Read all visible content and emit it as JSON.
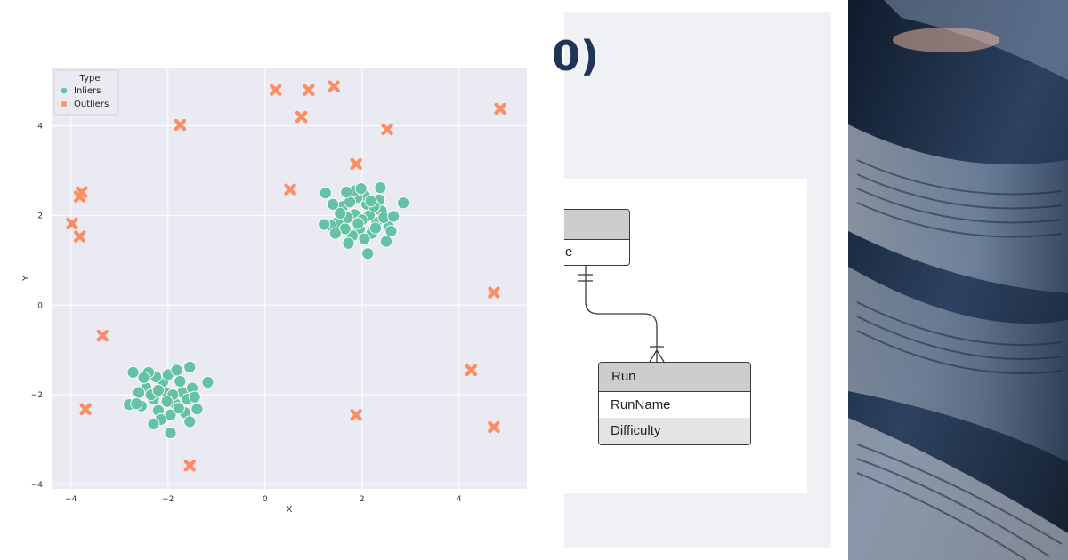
{
  "chart_data": {
    "type": "scatter",
    "title": "",
    "xlabel": "X",
    "ylabel": "Y",
    "xlim": [
      -4.4,
      5.4
    ],
    "ylim": [
      -4.1,
      5.3
    ],
    "xticks": [
      -4,
      -2,
      0,
      2,
      4
    ],
    "yticks": [
      -4,
      -2,
      0,
      2,
      4
    ],
    "grid": true,
    "legend": {
      "title": "Type",
      "placement": "top-left"
    },
    "series": [
      {
        "name": "Inliers",
        "marker": "circle",
        "color": "#66c2a5",
        "points": [
          [
            1.85,
            2.02
          ],
          [
            2.1,
            2.25
          ],
          [
            1.7,
            1.95
          ],
          [
            2.3,
            1.85
          ],
          [
            1.95,
            1.7
          ],
          [
            2.05,
            2.45
          ],
          [
            1.6,
            2.2
          ],
          [
            2.4,
            2.1
          ],
          [
            1.8,
            1.55
          ],
          [
            2.2,
            1.6
          ],
          [
            1.5,
            1.85
          ],
          [
            2.55,
            1.75
          ],
          [
            1.9,
            2.4
          ],
          [
            2.15,
            2.0
          ],
          [
            1.75,
            2.3
          ],
          [
            2.35,
            2.35
          ],
          [
            1.65,
            1.7
          ],
          [
            2.45,
            1.95
          ],
          [
            2.0,
            1.9
          ],
          [
            1.55,
            2.05
          ],
          [
            1.4,
            2.25
          ],
          [
            2.6,
            1.65
          ],
          [
            1.85,
            2.55
          ],
          [
            2.25,
            2.2
          ],
          [
            1.35,
            1.78
          ],
          [
            1.25,
            2.5
          ],
          [
            2.38,
            2.62
          ],
          [
            2.85,
            2.28
          ],
          [
            2.12,
            1.15
          ],
          [
            2.5,
            1.42
          ],
          [
            1.72,
            1.38
          ],
          [
            1.98,
            2.6
          ],
          [
            1.22,
            1.8
          ],
          [
            2.65,
            1.98
          ],
          [
            1.45,
            1.6
          ],
          [
            2.05,
            1.48
          ],
          [
            1.68,
            2.52
          ],
          [
            2.28,
            1.72
          ],
          [
            1.92,
            1.82
          ],
          [
            2.18,
            2.32
          ],
          [
            -2.05,
            -1.95
          ],
          [
            -2.3,
            -2.1
          ],
          [
            -1.85,
            -2.2
          ],
          [
            -2.1,
            -1.7
          ],
          [
            -1.7,
            -1.95
          ],
          [
            -2.45,
            -1.85
          ],
          [
            -2.2,
            -2.35
          ],
          [
            -1.95,
            -2.45
          ],
          [
            -2.35,
            -2.0
          ],
          [
            -1.6,
            -2.1
          ],
          [
            -2.55,
            -2.25
          ],
          [
            -2.0,
            -1.55
          ],
          [
            -1.75,
            -1.7
          ],
          [
            -2.25,
            -1.6
          ],
          [
            -1.9,
            -2.0
          ],
          [
            -2.4,
            -1.5
          ],
          [
            -1.65,
            -2.4
          ],
          [
            -2.15,
            -2.55
          ],
          [
            -2.6,
            -1.95
          ],
          [
            -1.5,
            -1.85
          ],
          [
            -2.8,
            -2.22
          ],
          [
            -2.72,
            -1.5
          ],
          [
            -1.55,
            -1.38
          ],
          [
            -1.18,
            -1.72
          ],
          [
            -1.95,
            -2.85
          ],
          [
            -1.55,
            -2.6
          ],
          [
            -2.3,
            -2.65
          ],
          [
            -1.4,
            -2.32
          ],
          [
            -2.5,
            -1.62
          ],
          [
            -2.02,
            -2.15
          ],
          [
            -1.82,
            -1.45
          ],
          [
            -2.65,
            -2.2
          ],
          [
            -1.45,
            -2.05
          ],
          [
            -2.2,
            -1.9
          ],
          [
            -1.78,
            -2.3
          ]
        ]
      },
      {
        "name": "Outliers",
        "marker": "x",
        "color": "#fc8d62",
        "points": [
          [
            -3.78,
            2.52
          ],
          [
            -3.82,
            2.42
          ],
          [
            -3.98,
            1.82
          ],
          [
            -3.82,
            1.53
          ],
          [
            -1.75,
            4.02
          ],
          [
            0.22,
            4.8
          ],
          [
            0.9,
            4.8
          ],
          [
            1.42,
            4.88
          ],
          [
            0.75,
            4.2
          ],
          [
            4.85,
            4.38
          ],
          [
            2.52,
            3.92
          ],
          [
            1.88,
            3.15
          ],
          [
            0.52,
            2.58
          ],
          [
            4.72,
            0.28
          ],
          [
            -3.35,
            -0.68
          ],
          [
            4.25,
            -1.45
          ],
          [
            -3.7,
            -2.32
          ],
          [
            1.88,
            -2.45
          ],
          [
            4.72,
            -2.72
          ],
          [
            -1.55,
            -3.58
          ]
        ]
      }
    ]
  },
  "slide": {
    "title_fragment": "0)",
    "diagram": {
      "partial_entity_attribute": "e",
      "entity": {
        "name": "Run",
        "attributes": [
          "RunName",
          "Difficulty"
        ]
      }
    }
  },
  "photo": {
    "subject": "newspaper-pages-icon"
  }
}
